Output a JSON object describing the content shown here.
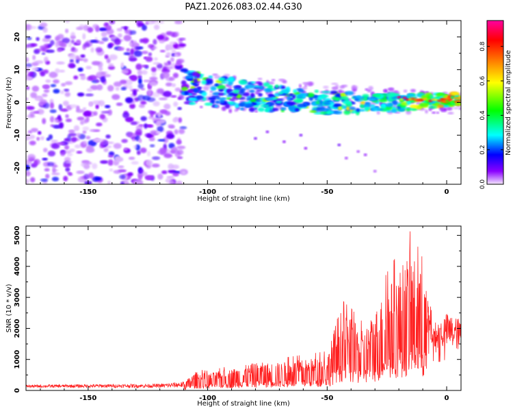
{
  "chart_data": [
    {
      "type": "heatmap",
      "title": "PAZ1.2026.083.02.44.G30",
      "xlabel": "Height of straight line (km)",
      "ylabel": "Frequency (Hz)",
      "xlim": [
        -176,
        6
      ],
      "ylim": [
        -25,
        25
      ],
      "x_ticks": [
        -150,
        -100,
        -50,
        0
      ],
      "x_tick_labels": [
        "-150",
        "-100",
        "-50",
        "0"
      ],
      "y_ticks": [
        -20,
        -10,
        0,
        10,
        20
      ],
      "y_tick_labels": [
        "-20",
        "-10",
        "0",
        "10",
        "20"
      ],
      "colorbar": {
        "label": "Normalized spectral amplitude",
        "range": [
          0,
          0.95
        ],
        "ticks": [
          0.0,
          0.2,
          0.4,
          0.6,
          0.8
        ],
        "tick_labels": [
          "0.0",
          "0.2",
          "0.4",
          "0.6",
          "0.8"
        ],
        "colors": [
          "#f4e8ff",
          "#8a00ff",
          "#0000ff",
          "#00ffff",
          "#00ff00",
          "#ffff00",
          "#ff8000",
          "#ff0000",
          "#ff00a0"
        ]
      },
      "regions": [
        {
          "name": "noise",
          "x_range": [
            -176,
            -110
          ],
          "freq_range": [
            -25,
            25
          ],
          "amplitude": 0.08
        },
        {
          "name": "signal-band",
          "x_range": [
            -110,
            6
          ],
          "freq_start": 5,
          "freq_end": 1,
          "amplitude_peak": 0.9
        }
      ]
    },
    {
      "type": "line",
      "xlabel": "Height of straight line (km)",
      "ylabel": "SNR (10 * v/v)",
      "xlim": [
        -176,
        6
      ],
      "ylim": [
        0,
        5300
      ],
      "x_ticks": [
        -150,
        -100,
        -50,
        0
      ],
      "x_tick_labels": [
        "-150",
        "-100",
        "-50",
        "0"
      ],
      "y_ticks": [
        0,
        1000,
        2000,
        3000,
        4000,
        5000
      ],
      "y_tick_labels": [
        "0",
        "1000",
        "2000",
        "3000",
        "4000",
        "5000"
      ],
      "line_color": "#ff2020",
      "envelope": {
        "x": [
          -176,
          -150,
          -120,
          -110,
          -105,
          -100,
          -90,
          -80,
          -70,
          -60,
          -50,
          -45,
          -40,
          -35,
          -30,
          -25,
          -20,
          -15,
          -10,
          -5,
          0,
          6
        ],
        "y": [
          150,
          170,
          180,
          260,
          600,
          550,
          700,
          900,
          900,
          1000,
          1100,
          2600,
          2300,
          1900,
          2600,
          3300,
          3900,
          4500,
          3700,
          2200,
          2500,
          2300
        ]
      }
    }
  ]
}
